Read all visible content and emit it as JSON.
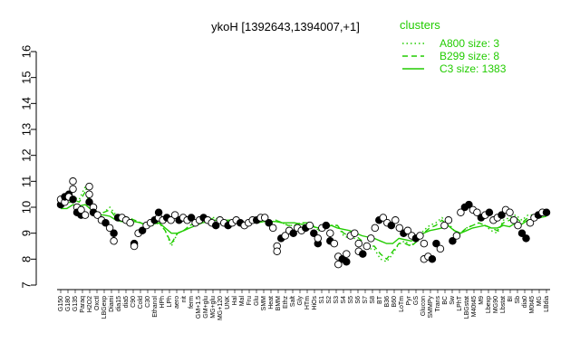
{
  "chart_data": {
    "type": "line",
    "title": "ykoH [1392643,1394007,+1]",
    "xlabel": "",
    "ylabel": "",
    "ylim": [
      7,
      16
    ],
    "yticks": [
      7,
      8,
      9,
      10,
      11,
      12,
      13,
      14,
      15,
      16
    ],
    "grid": false,
    "legend_title": "clusters",
    "legend_position": "top-right",
    "legend": [
      {
        "label": "A800 size: 3",
        "style": "dotted"
      },
      {
        "label": "B299 size: 8",
        "style": "dashed"
      },
      {
        "label": "C3 size: 1383",
        "style": "solid"
      }
    ],
    "colors": {
      "line": "#22cc00",
      "points_fill": "#ffffff",
      "points_dark": "#000000"
    },
    "x_tick_labels": [
      "G150",
      "G180",
      "G135",
      "Paraq",
      "H2O2",
      "Oxctl",
      "LBGexp",
      "Diami",
      "dia15",
      "dia5",
      "C90",
      "Cold",
      "C30",
      "Ethanol",
      "HPh",
      "LPh",
      "aero",
      "nit",
      "ferm",
      "GM+1.5",
      "GM+glu",
      "MG+glu",
      "MG+120",
      "UNK",
      "Hal",
      "Mal",
      "Fru",
      "Glu",
      "SMM",
      "Heat",
      "BMM",
      "Ethz",
      "Salt",
      "Gly",
      "HTm",
      "HiOs",
      "S1",
      "S2",
      "S3",
      "S4",
      "S5",
      "S6",
      "S7",
      "S8",
      "BT",
      "B36",
      "B60",
      "LoTm",
      "Pyr",
      "GS",
      "Glucon",
      "SMMPy",
      "Trans",
      "BC",
      "Sw",
      "LPhT",
      "LBGstat",
      "M40t45",
      "M9",
      "Lbexp",
      "MG90",
      "Lbstat",
      "BI",
      "Sb",
      "dia0",
      "M0t45",
      "MG",
      "LBdia"
    ],
    "series": [
      {
        "style": "solid",
        "values": [
          9.95,
          9.95,
          10.1,
          10.05,
          10.1,
          9.9,
          9.7,
          9.7,
          9.65,
          9.5,
          9.45,
          9.4,
          9.45,
          9.4,
          9.3,
          9.35,
          9.4,
          9.2,
          9.0,
          9.0,
          9.1,
          9.2,
          9.3,
          9.4,
          9.45,
          9.5,
          9.5,
          9.45,
          9.5,
          9.45,
          9.4,
          9.4,
          9.4,
          9.45,
          9.45,
          9.45,
          9.4,
          9.4,
          9.4,
          9.35,
          9.3,
          9.25,
          9.2,
          9.25,
          9.3,
          9.2,
          9.15,
          9.1,
          9.0,
          8.9,
          8.85,
          8.8,
          8.7,
          8.6,
          8.6,
          8.8,
          8.75,
          8.7,
          8.8,
          9.0,
          9.1,
          9.15,
          9.2,
          9.3,
          9.1,
          9.0,
          9.1,
          9.2,
          9.25,
          9.3,
          9.2,
          9.2,
          9.3,
          9.25,
          9.4,
          9.35,
          9.5,
          9.55,
          9.6,
          9.65
        ]
      },
      {
        "style": "dashed",
        "values": [
          10.1,
          10.1,
          10.3,
          10.2,
          10.6,
          10.0,
          9.8,
          9.8,
          9.9,
          9.6,
          9.4,
          9.6,
          9.5,
          9.4,
          9.3,
          9.3,
          9.4,
          9.1,
          8.6,
          9.0,
          9.1,
          9.3,
          9.4,
          9.5,
          9.5,
          9.6,
          9.5,
          9.5,
          9.5,
          9.5,
          9.4,
          9.4,
          9.5,
          9.5,
          9.4,
          9.5,
          9.4,
          9.3,
          9.3,
          9.4,
          9.4,
          9.3,
          9.1,
          9.2,
          9.3,
          9.3,
          9.0,
          8.9,
          8.9,
          8.7,
          8.5,
          8.5,
          8.2,
          8.0,
          8.3,
          8.6,
          8.6,
          8.5,
          8.7,
          9.0,
          9.2,
          9.3,
          9.5,
          9.3,
          9.1,
          9.0,
          9.2,
          9.3,
          9.4,
          9.3,
          9.2,
          9.1,
          9.4,
          9.5,
          9.6,
          9.4,
          9.6,
          9.6,
          9.7,
          9.8
        ]
      },
      {
        "style": "dotted",
        "values": [
          10.2,
          10.3,
          10.4,
          10.3,
          10.8,
          10.0,
          9.8,
          9.8,
          10.0,
          9.7,
          9.5,
          9.6,
          9.5,
          9.4,
          9.3,
          9.4,
          9.4,
          9.1,
          8.5,
          9.0,
          9.1,
          9.3,
          9.4,
          9.5,
          9.6,
          9.6,
          9.5,
          9.5,
          9.5,
          9.5,
          9.4,
          9.4,
          9.5,
          9.5,
          9.4,
          9.5,
          9.4,
          9.3,
          9.3,
          9.4,
          9.4,
          9.3,
          9.1,
          9.2,
          9.3,
          9.3,
          8.9,
          8.8,
          8.8,
          8.6,
          8.4,
          8.4,
          8.0,
          7.9,
          8.2,
          8.6,
          8.7,
          8.5,
          8.8,
          9.1,
          9.3,
          9.4,
          9.6,
          9.4,
          9.1,
          9.0,
          9.2,
          9.3,
          9.4,
          9.3,
          9.1,
          9.0,
          9.5,
          9.6,
          9.7,
          9.5,
          9.7,
          9.7,
          9.8,
          9.8
        ]
      }
    ],
    "points": [
      {
        "i": 0,
        "y": 10.1,
        "f": 1
      },
      {
        "i": 0,
        "y": 10.3,
        "f": 0
      },
      {
        "i": 1,
        "y": 10.2,
        "f": 0
      },
      {
        "i": 1,
        "y": 10.4,
        "f": 1
      },
      {
        "i": 2,
        "y": 10.5,
        "f": 1
      },
      {
        "i": 2,
        "y": 10.4,
        "f": 0
      },
      {
        "i": 3,
        "y": 11.0,
        "f": 0
      },
      {
        "i": 3,
        "y": 10.7,
        "f": 0
      },
      {
        "i": 3,
        "y": 10.3,
        "f": 1
      },
      {
        "i": 4,
        "y": 10.0,
        "f": 0
      },
      {
        "i": 4,
        "y": 9.8,
        "f": 1
      },
      {
        "i": 5,
        "y": 9.7,
        "f": 1
      },
      {
        "i": 5,
        "y": 9.9,
        "f": 0
      },
      {
        "i": 6,
        "y": 9.7,
        "f": 0
      },
      {
        "i": 7,
        "y": 10.8,
        "f": 0
      },
      {
        "i": 7,
        "y": 10.5,
        "f": 0
      },
      {
        "i": 7,
        "y": 10.2,
        "f": 1
      },
      {
        "i": 8,
        "y": 10.0,
        "f": 0
      },
      {
        "i": 8,
        "y": 9.8,
        "f": 1
      },
      {
        "i": 9,
        "y": 9.7,
        "f": 0
      },
      {
        "i": 10,
        "y": 9.5,
        "f": 0
      },
      {
        "i": 11,
        "y": 9.4,
        "f": 1
      },
      {
        "i": 12,
        "y": 9.2,
        "f": 0
      },
      {
        "i": 13,
        "y": 9.0,
        "f": 1
      },
      {
        "i": 13,
        "y": 8.7,
        "f": 0
      },
      {
        "i": 14,
        "y": 9.6,
        "f": 1
      },
      {
        "i": 15,
        "y": 9.6,
        "f": 0
      },
      {
        "i": 16,
        "y": 9.5,
        "f": 0
      },
      {
        "i": 17,
        "y": 9.4,
        "f": 0
      },
      {
        "i": 18,
        "y": 8.6,
        "f": 1
      },
      {
        "i": 18,
        "y": 8.5,
        "f": 0
      },
      {
        "i": 19,
        "y": 9.0,
        "f": 0
      },
      {
        "i": 20,
        "y": 9.1,
        "f": 1
      },
      {
        "i": 21,
        "y": 9.3,
        "f": 0
      },
      {
        "i": 22,
        "y": 9.4,
        "f": 0
      },
      {
        "i": 23,
        "y": 9.5,
        "f": 1
      },
      {
        "i": 24,
        "y": 9.6,
        "f": 0
      },
      {
        "i": 24,
        "y": 9.8,
        "f": 1
      },
      {
        "i": 25,
        "y": 9.5,
        "f": 0
      },
      {
        "i": 26,
        "y": 9.6,
        "f": 1
      },
      {
        "i": 27,
        "y": 9.5,
        "f": 0
      },
      {
        "i": 28,
        "y": 9.7,
        "f": 0
      },
      {
        "i": 29,
        "y": 9.5,
        "f": 1
      },
      {
        "i": 30,
        "y": 9.6,
        "f": 0
      },
      {
        "i": 31,
        "y": 9.5,
        "f": 0
      },
      {
        "i": 32,
        "y": 9.6,
        "f": 1
      },
      {
        "i": 33,
        "y": 9.4,
        "f": 0
      },
      {
        "i": 34,
        "y": 9.5,
        "f": 0
      },
      {
        "i": 35,
        "y": 9.6,
        "f": 1
      },
      {
        "i": 36,
        "y": 9.5,
        "f": 0
      },
      {
        "i": 37,
        "y": 9.4,
        "f": 0
      },
      {
        "i": 38,
        "y": 9.3,
        "f": 1
      },
      {
        "i": 39,
        "y": 9.5,
        "f": 0
      },
      {
        "i": 40,
        "y": 9.4,
        "f": 0
      },
      {
        "i": 41,
        "y": 9.3,
        "f": 1
      },
      {
        "i": 42,
        "y": 9.4,
        "f": 0
      },
      {
        "i": 43,
        "y": 9.5,
        "f": 0
      },
      {
        "i": 44,
        "y": 9.4,
        "f": 1
      },
      {
        "i": 45,
        "y": 9.3,
        "f": 0
      },
      {
        "i": 46,
        "y": 9.4,
        "f": 0
      },
      {
        "i": 47,
        "y": 9.5,
        "f": 0
      },
      {
        "i": 48,
        "y": 9.5,
        "f": 1
      },
      {
        "i": 49,
        "y": 9.6,
        "f": 0
      },
      {
        "i": 50,
        "y": 9.6,
        "f": 0
      },
      {
        "i": 51,
        "y": 9.4,
        "f": 1
      },
      {
        "i": 52,
        "y": 9.2,
        "f": 0
      },
      {
        "i": 53,
        "y": 8.5,
        "f": 0
      },
      {
        "i": 53,
        "y": 8.3,
        "f": 0
      },
      {
        "i": 54,
        "y": 8.8,
        "f": 1
      },
      {
        "i": 55,
        "y": 8.9,
        "f": 0
      },
      {
        "i": 56,
        "y": 9.1,
        "f": 0
      },
      {
        "i": 57,
        "y": 9.0,
        "f": 1
      },
      {
        "i": 58,
        "y": 9.2,
        "f": 0
      },
      {
        "i": 59,
        "y": 9.1,
        "f": 0
      },
      {
        "i": 60,
        "y": 9.2,
        "f": 1
      },
      {
        "i": 61,
        "y": 9.3,
        "f": 0
      },
      {
        "i": 62,
        "y": 9.0,
        "f": 1
      },
      {
        "i": 63,
        "y": 8.6,
        "f": 1
      },
      {
        "i": 63,
        "y": 8.8,
        "f": 0
      },
      {
        "i": 64,
        "y": 9.2,
        "f": 0
      },
      {
        "i": 65,
        "y": 9.3,
        "f": 1
      },
      {
        "i": 66,
        "y": 9.0,
        "f": 0
      },
      {
        "i": 66,
        "y": 8.7,
        "f": 1
      },
      {
        "i": 67,
        "y": 8.6,
        "f": 0
      },
      {
        "i": 68,
        "y": 8.1,
        "f": 0
      },
      {
        "i": 68,
        "y": 7.8,
        "f": 0
      },
      {
        "i": 69,
        "y": 8.0,
        "f": 1
      },
      {
        "i": 70,
        "y": 8.2,
        "f": 0
      },
      {
        "i": 70,
        "y": 7.9,
        "f": 1
      },
      {
        "i": 71,
        "y": 8.9,
        "f": 0
      },
      {
        "i": 72,
        "y": 9.0,
        "f": 0
      },
      {
        "i": 73,
        "y": 8.6,
        "f": 0
      },
      {
        "i": 73,
        "y": 8.3,
        "f": 0
      },
      {
        "i": 74,
        "y": 8.2,
        "f": 1
      },
      {
        "i": 75,
        "y": 8.5,
        "f": 0
      },
      {
        "i": 76,
        "y": 8.8,
        "f": 0
      },
      {
        "i": 77,
        "y": 9.2,
        "f": 0
      },
      {
        "i": 78,
        "y": 9.5,
        "f": 1
      },
      {
        "i": 79,
        "y": 9.6,
        "f": 0
      },
      {
        "i": 80,
        "y": 9.4,
        "f": 0
      },
      {
        "i": 81,
        "y": 9.3,
        "f": 1
      },
      {
        "i": 82,
        "y": 9.5,
        "f": 0
      },
      {
        "i": 83,
        "y": 9.2,
        "f": 0
      },
      {
        "i": 84,
        "y": 9.0,
        "f": 1
      },
      {
        "i": 85,
        "y": 9.1,
        "f": 0
      },
      {
        "i": 86,
        "y": 8.9,
        "f": 0
      },
      {
        "i": 87,
        "y": 8.8,
        "f": 1
      },
      {
        "i": 88,
        "y": 8.9,
        "f": 0
      },
      {
        "i": 89,
        "y": 8.6,
        "f": 0
      },
      {
        "i": 89,
        "y": 8.0,
        "f": 0
      },
      {
        "i": 90,
        "y": 8.1,
        "f": 0
      },
      {
        "i": 91,
        "y": 8.0,
        "f": 1
      },
      {
        "i": 92,
        "y": 8.6,
        "f": 1
      },
      {
        "i": 93,
        "y": 8.4,
        "f": 0
      },
      {
        "i": 94,
        "y": 9.3,
        "f": 0
      },
      {
        "i": 95,
        "y": 9.5,
        "f": 0
      },
      {
        "i": 96,
        "y": 8.7,
        "f": 1
      },
      {
        "i": 97,
        "y": 8.9,
        "f": 0
      },
      {
        "i": 98,
        "y": 9.8,
        "f": 0
      },
      {
        "i": 99,
        "y": 10.0,
        "f": 1
      },
      {
        "i": 100,
        "y": 10.1,
        "f": 1
      },
      {
        "i": 101,
        "y": 9.9,
        "f": 0
      },
      {
        "i": 102,
        "y": 9.8,
        "f": 0
      },
      {
        "i": 103,
        "y": 9.6,
        "f": 1
      },
      {
        "i": 104,
        "y": 9.7,
        "f": 0
      },
      {
        "i": 105,
        "y": 9.8,
        "f": 1
      },
      {
        "i": 106,
        "y": 9.5,
        "f": 0
      },
      {
        "i": 107,
        "y": 9.6,
        "f": 0
      },
      {
        "i": 108,
        "y": 9.7,
        "f": 1
      },
      {
        "i": 109,
        "y": 9.9,
        "f": 0
      },
      {
        "i": 110,
        "y": 9.8,
        "f": 0
      },
      {
        "i": 111,
        "y": 9.5,
        "f": 0
      },
      {
        "i": 112,
        "y": 9.3,
        "f": 0
      },
      {
        "i": 113,
        "y": 9.0,
        "f": 1
      },
      {
        "i": 114,
        "y": 8.8,
        "f": 1
      },
      {
        "i": 115,
        "y": 9.4,
        "f": 0
      },
      {
        "i": 116,
        "y": 9.6,
        "f": 0
      },
      {
        "i": 117,
        "y": 9.7,
        "f": 1
      },
      {
        "i": 118,
        "y": 9.8,
        "f": 0
      },
      {
        "i": 119,
        "y": 9.8,
        "f": 1
      }
    ]
  }
}
